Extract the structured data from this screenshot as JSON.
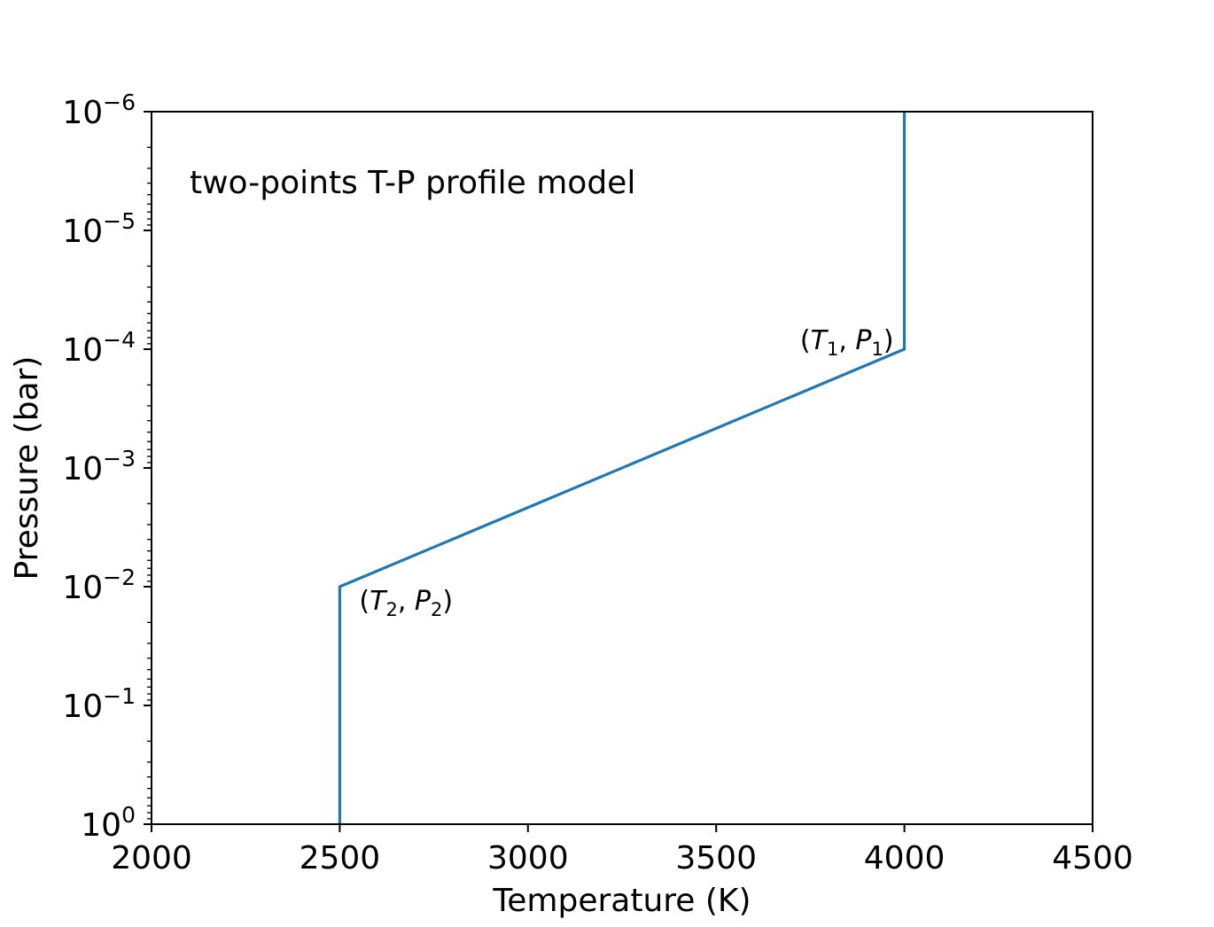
{
  "chart_data": {
    "type": "line",
    "title": "",
    "annotation": "two-points T-P profile model",
    "xlabel": "Temperature (K)",
    "ylabel": "Pressure (bar)",
    "xlim": [
      2000,
      4500
    ],
    "ylim": [
      1,
      1e-06
    ],
    "yscale": "log",
    "y_inverted": true,
    "grid": false,
    "x_ticks": [
      2000,
      2500,
      3000,
      3500,
      4000,
      4500
    ],
    "x_tick_labels": [
      "2000",
      "2500",
      "3000",
      "3500",
      "4000",
      "4500"
    ],
    "y_ticks": [
      1,
      0.1,
      0.01,
      0.001,
      0.0001,
      1e-05,
      1e-06
    ],
    "y_tick_labels": [
      {
        "base": "10",
        "exp": "0"
      },
      {
        "base": "10",
        "exp": "−1"
      },
      {
        "base": "10",
        "exp": "−2"
      },
      {
        "base": "10",
        "exp": "−3"
      },
      {
        "base": "10",
        "exp": "−4"
      },
      {
        "base": "10",
        "exp": "−5"
      },
      {
        "base": "10",
        "exp": "−6"
      }
    ],
    "series": [
      {
        "color": "#1f77b4",
        "x": [
          2500,
          2500,
          4000,
          4000
        ],
        "y": [
          1,
          0.01,
          0.0001,
          1e-06
        ]
      }
    ],
    "point_labels": [
      {
        "text": "(T1, P1)",
        "T": "T",
        "t_sub": "1",
        "P": "P",
        "p_sub": "1",
        "x": 4000,
        "y": 0.0001
      },
      {
        "text": "(T2, P2)",
        "T": "T",
        "t_sub": "2",
        "P": "P",
        "p_sub": "2",
        "x": 2500,
        "y": 0.01
      }
    ]
  }
}
